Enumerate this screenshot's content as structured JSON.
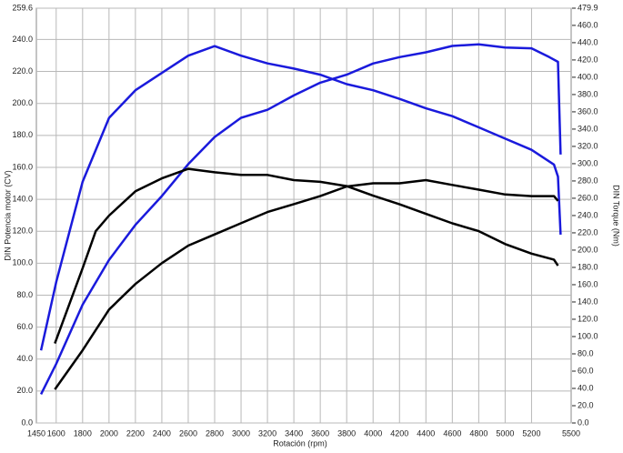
{
  "chart_data": {
    "type": "line",
    "x_label": "Rotación (rpm)",
    "y_label": "DIN Potencia motor (CV)",
    "y2_label": "DIN Torque (Nm)",
    "xlim": [
      1450,
      5500
    ],
    "xticks": [
      1450,
      1600,
      1800,
      2000,
      2200,
      2400,
      2600,
      2800,
      3000,
      3200,
      3400,
      3600,
      3800,
      4000,
      4200,
      4400,
      4600,
      4800,
      5000,
      5200,
      5500
    ],
    "ylim": [
      0,
      259.6
    ],
    "yticks": [
      {
        "value": 0,
        "label": "0.0"
      },
      {
        "value": 20,
        "label": "20.0"
      },
      {
        "value": 40,
        "label": "40.0"
      },
      {
        "value": 60,
        "label": "60.0"
      },
      {
        "value": 80,
        "label": "80.0"
      },
      {
        "value": 100,
        "label": "100.0"
      },
      {
        "value": 120,
        "label": "120.0"
      },
      {
        "value": 140,
        "label": "140.0"
      },
      {
        "value": 160,
        "label": "160.0"
      },
      {
        "value": 180,
        "label": "180.0"
      },
      {
        "value": 200,
        "label": "200.0"
      },
      {
        "value": 220,
        "label": "220.0"
      },
      {
        "value": 240,
        "label": "240.0"
      },
      259.6
    ],
    "y2lim": [
      0,
      479.9
    ],
    "y2ticks": [
      {
        "value": 0,
        "label": "0.0"
      },
      {
        "value": 20,
        "label": "20.0"
      },
      {
        "value": 40,
        "label": "40.0"
      },
      {
        "value": 60,
        "label": "60.0"
      },
      {
        "value": 80,
        "label": "80.0"
      },
      {
        "value": 100,
        "label": "100.0"
      },
      {
        "value": 120,
        "label": "120.0"
      },
      {
        "value": 140,
        "label": "140.0"
      },
      {
        "value": 160,
        "label": "160.0"
      },
      {
        "value": 180,
        "label": "180.0"
      },
      {
        "value": 200,
        "label": "200.0"
      },
      {
        "value": 220,
        "label": "220.0"
      },
      {
        "value": 240,
        "label": "240.0"
      },
      {
        "value": 260,
        "label": "260.0"
      },
      {
        "value": 280,
        "label": "280.0"
      },
      {
        "value": 300,
        "label": "300.0"
      },
      {
        "value": 320,
        "label": "320.0"
      },
      {
        "value": 340,
        "label": "340.0"
      },
      {
        "value": 360,
        "label": "360.0"
      },
      {
        "value": 380,
        "label": "380.0"
      },
      {
        "value": 400,
        "label": "400.0"
      },
      {
        "value": 420,
        "label": "420.0"
      },
      {
        "value": 440,
        "label": "440.0"
      },
      {
        "value": 460,
        "label": "460.0"
      },
      479.9
    ],
    "grid": true,
    "series": [
      {
        "color": "#1a1adc",
        "axis": "y",
        "x": [
          1485,
          1600,
          1800,
          2000,
          2200,
          2400,
          2600,
          2800,
          3000,
          3200,
          3400,
          3600,
          3800,
          4000,
          4200,
          4400,
          4600,
          4800,
          5000,
          5200,
          5335,
          5400,
          5420
        ],
        "values": [
          18,
          37,
          74,
          102,
          124,
          142,
          162,
          179,
          191,
          196,
          205,
          213,
          218,
          225,
          229,
          232,
          236,
          237,
          235,
          234.5,
          229,
          226,
          168
        ]
      },
      {
        "color": "#1a1adc",
        "axis": "y2",
        "x": [
          1485,
          1600,
          1800,
          2000,
          2200,
          2400,
          2600,
          2800,
          3000,
          3200,
          3400,
          3600,
          3800,
          4000,
          4200,
          4400,
          4600,
          4800,
          5000,
          5200,
          5370,
          5400,
          5420
        ],
        "values": [
          84,
          163,
          279,
          353,
          385,
          405,
          425,
          436,
          425,
          416,
          410,
          403,
          392,
          385,
          375,
          364,
          355,
          342,
          329,
          316,
          299,
          285,
          218
        ]
      },
      {
        "color": "#000000",
        "axis": "y2",
        "x": [
          1590,
          1800,
          1900,
          2000,
          2200,
          2400,
          2600,
          2800,
          3000,
          3200,
          3400,
          3600,
          3800,
          4000,
          4200,
          4400,
          4600,
          4800,
          5000,
          5200,
          5370,
          5400
        ],
        "values": [
          92,
          179,
          222,
          240,
          268,
          283,
          294,
          290,
          287,
          287,
          281,
          279,
          274,
          263,
          253,
          242,
          231,
          222,
          207,
          196,
          189,
          182
        ]
      },
      {
        "color": "#000000",
        "axis": "y",
        "x": [
          1590,
          1800,
          2000,
          2200,
          2400,
          2600,
          2800,
          3000,
          3200,
          3400,
          3600,
          3800,
          4000,
          4200,
          4400,
          4600,
          4800,
          5000,
          5200,
          5370,
          5400
        ],
        "values": [
          21,
          45.5,
          71,
          87,
          100,
          111,
          118,
          125,
          132,
          137,
          142,
          148,
          150,
          150,
          152,
          149,
          146,
          143,
          142,
          142,
          139
        ]
      }
    ]
  }
}
